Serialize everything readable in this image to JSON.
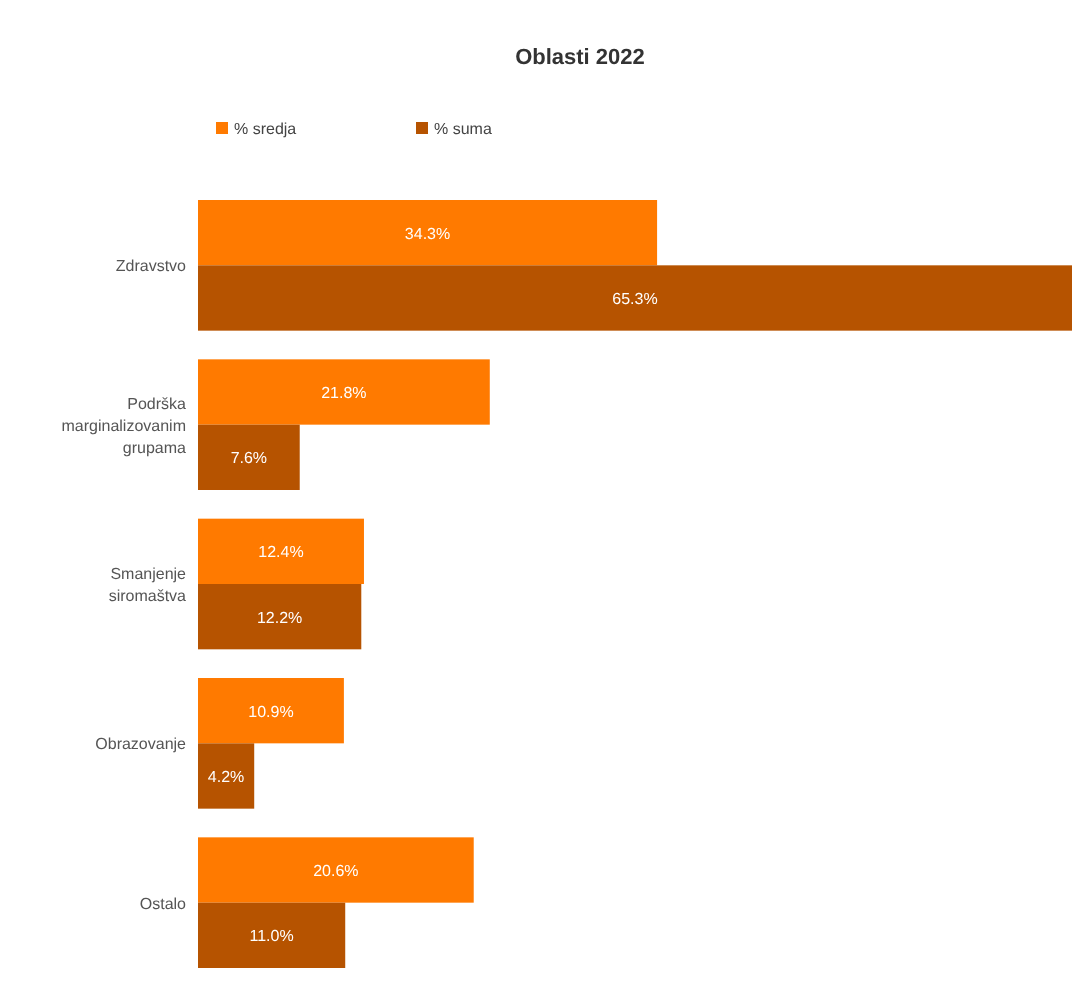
{
  "chart_data": {
    "type": "bar",
    "orientation": "horizontal",
    "title": "Oblasti 2022",
    "categories": [
      "Zdravstvo",
      "Podrška marginalizovanim grupama",
      "Smanjenje siromaštva",
      "Obrazovanje",
      "Ostalo"
    ],
    "series": [
      {
        "name": "% sredja",
        "color": "#ff7a00",
        "values": [
          34.3,
          21.8,
          12.4,
          10.9,
          20.6
        ],
        "value_labels": [
          "34.3%",
          "21.8%",
          "12.4%",
          "10.9%",
          "20.6%"
        ]
      },
      {
        "name": "% suma",
        "color": "#b65300",
        "values": [
          65.3,
          7.6,
          12.2,
          4.2,
          11.0
        ],
        "value_labels": [
          "65.3%",
          "7.6%",
          "12.2%",
          "4.2%",
          "11.0%"
        ]
      }
    ],
    "legend": "top left"
  }
}
